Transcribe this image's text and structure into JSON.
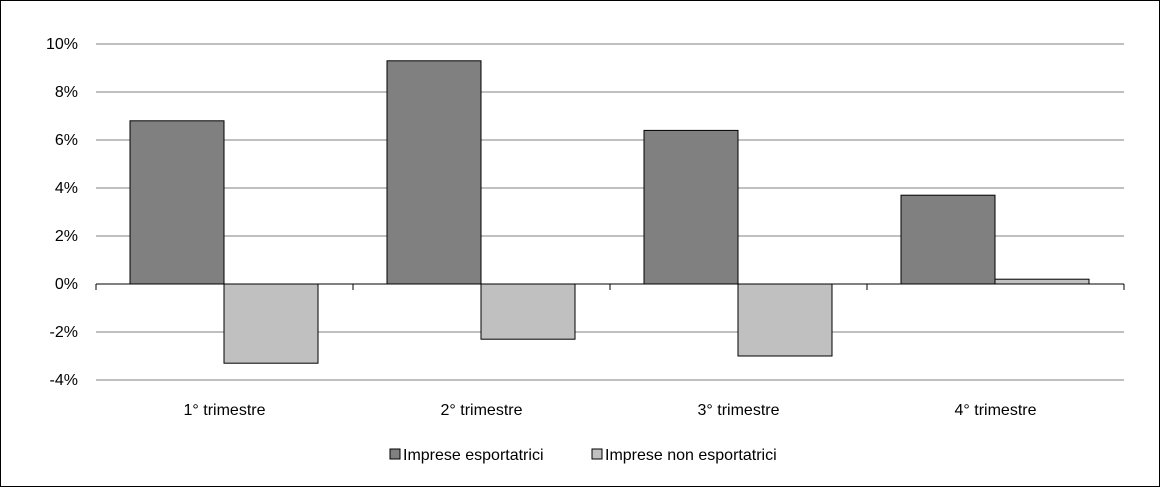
{
  "chart_data": {
    "type": "bar",
    "categories": [
      "1° trimestre",
      "2° trimestre",
      "3° trimestre",
      "4° trimestre"
    ],
    "series": [
      {
        "name": "Imprese esportatrici",
        "values": [
          6.8,
          9.3,
          6.4,
          3.7
        ],
        "color": "#808080"
      },
      {
        "name": "Imprese non esportatrici",
        "values": [
          -3.3,
          -2.3,
          -3.0,
          0.2
        ],
        "color": "#c0c0c0"
      }
    ],
    "ylim": [
      -4,
      10
    ],
    "yticks": [
      "-4%",
      "-2%",
      "0%",
      "2%",
      "4%",
      "6%",
      "8%",
      "10%"
    ],
    "ytick_values": [
      -4,
      -2,
      0,
      2,
      4,
      6,
      8,
      10
    ],
    "grid": true,
    "legend_position": "bottom"
  }
}
